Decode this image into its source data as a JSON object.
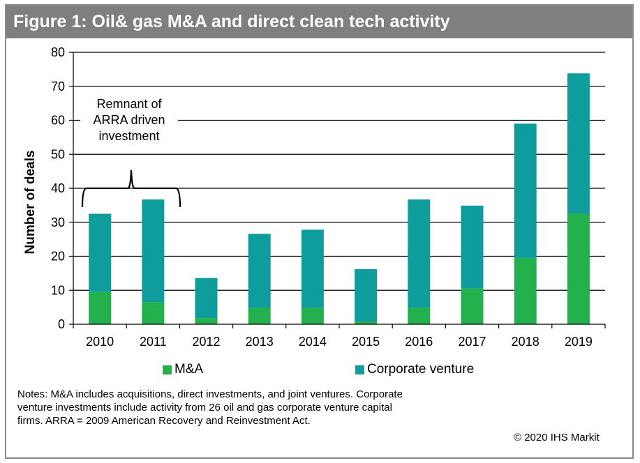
{
  "title": "Figure 1: Oil& gas M&A and direct clean tech activity",
  "annotation": "Remnant of ARRA driven investment",
  "notes": "Notes: M&A includes acquisitions, direct investments, and joint ventures.  Corporate venture investments include activity  from 26 oil and gas corporate venture capital firms. ARRA = 2009 American Recovery and Reinvestment Act.",
  "copyright": "© 2020 IHS Markit",
  "colors": {
    "ma": "#22b14c",
    "corporate_venture": "#0f9c9c",
    "title_bg": "#7f7f7f"
  },
  "chart_data": {
    "type": "bar",
    "stacked": true,
    "categories": [
      "2010",
      "2011",
      "2012",
      "2013",
      "2014",
      "2015",
      "2016",
      "2017",
      "2018",
      "2019"
    ],
    "series": [
      {
        "name": "M&A",
        "values": [
          9.5,
          6.5,
          1.8,
          4.8,
          4.8,
          0.8,
          4.8,
          10.5,
          19.5,
          32.5
        ]
      },
      {
        "name": "Corporate venture",
        "values": [
          23,
          30.2,
          11.8,
          21.8,
          23,
          15.4,
          31.9,
          24.4,
          39.5,
          41.3
        ]
      }
    ],
    "ylabel": "Number of deals",
    "xlabel": "",
    "ylim": [
      0,
      80
    ],
    "yticks": [
      0,
      10,
      20,
      30,
      40,
      50,
      60,
      70,
      80
    ],
    "grid": true,
    "legend": "bottom"
  }
}
